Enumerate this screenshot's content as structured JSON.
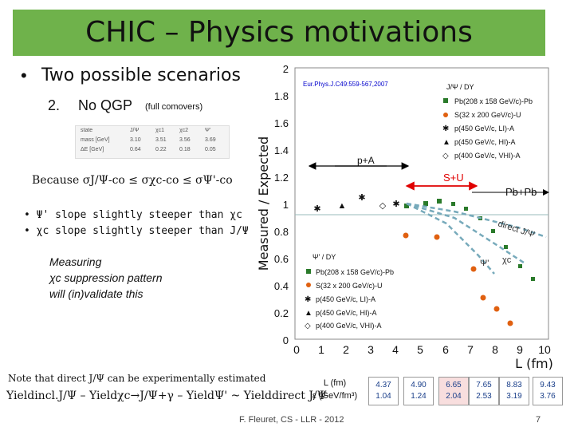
{
  "slide": {
    "title": "CHIC – Physics motivations",
    "bullet1": "Two possible scenarios",
    "sub_number": "2.",
    "sub_main": "No QGP",
    "sub_note": "(full comovers)",
    "because_text": "Because σJ/Ψ-co ≤ σχc-co ≤ σΨ'-co",
    "bullet_psi": "Ψ' slope slightly steeper than χc",
    "bullet_chic": "χc slope slightly steeper than J/Ψ",
    "measuring_1": "Measuring",
    "measuring_2": "χc suppression pattern",
    "measuring_3": "will (in)validate this",
    "note": "Note that direct J/Ψ can be experimentally estimated",
    "equation": "Yieldincl.J/Ψ – Yieldχc→J/Ψ+γ – YieldΨ' ~ Yielddirect J/Ψ",
    "footer": "F. Fleuret, CS - LLR - 2012",
    "page_number": "7",
    "colors": {
      "title_bg": "#6fb24b",
      "red": "#e00000",
      "blue": "#0000cc"
    }
  },
  "table": {
    "rows": [
      [
        "state",
        "J/Ψ",
        "χc1",
        "χc2",
        "Ψ'"
      ],
      [
        "mass [GeV]",
        "3.10",
        "3.51",
        "3.56",
        "3.69"
      ],
      [
        "ΔE [GeV]",
        "0.64",
        "0.22",
        "0.18",
        "0.05"
      ]
    ]
  },
  "plot": {
    "reference": "Eur.Phys.J.C49:559-567,2007",
    "ylabel": "Measured / Expected",
    "xlabel": "L (fm)",
    "y_ticks": [
      "2",
      "1.8",
      "1.6",
      "1.4",
      "1.2",
      "1",
      "0.8",
      "0.6",
      "0.4",
      "0.2",
      "0"
    ],
    "x_ticks": [
      "0",
      "1",
      "2",
      "3",
      "4",
      "5",
      "6",
      "7",
      "8",
      "9",
      "10"
    ],
    "legend_top_title": "J/Ψ / DY",
    "legend_top": [
      "Pb(208 x 158 GeV/c)-Pb",
      "S(32 x 200 GeV/c)-U",
      "p(450 GeV/c, LI)-A",
      "p(450 GeV/c, HI)-A",
      "p(400 GeV/c, VHI)-A"
    ],
    "legend_bottom_title": "Ψ' / DY",
    "legend_bottom": [
      "Pb(208 x 158 GeV/c)-Pb",
      "S(32 x 200 GeV/c)-U",
      "p(450 GeV/c, LI)-A",
      "p(450 GeV/c, HI)-A",
      "p(400 GeV/c, VHI)-A"
    ],
    "label_pA": "p+A",
    "label_SU": "S+U",
    "label_PbPb": "Pb+Pb",
    "label_direct": "direct J/Ψ",
    "label_psi": "Ψ'",
    "label_chic": "χc"
  },
  "energy_table": {
    "header_L": "L (fm)",
    "header_eps": "ε (GeV/fm³)",
    "columns": [
      {
        "L": "4.37",
        "eps": "1.04"
      },
      {
        "L": "4.90",
        "eps": "1.24"
      },
      {
        "L": "6.65",
        "eps": "2.04"
      },
      {
        "L": "7.65",
        "eps": "2.53"
      },
      {
        "L": "8.83",
        "eps": "3.19"
      },
      {
        "L": "9.43",
        "eps": "3.76"
      }
    ]
  }
}
